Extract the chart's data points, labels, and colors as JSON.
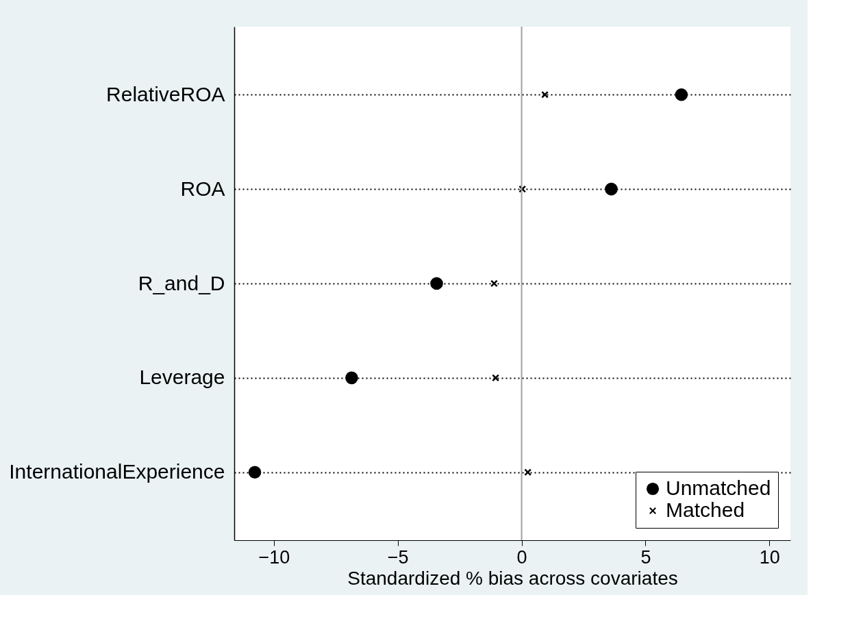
{
  "chart_data": {
    "type": "scatter",
    "orientation": "horizontal",
    "xlabel": "Standardized % bias across covariates",
    "categories": [
      "RelativeROA",
      "ROA",
      "R_and_D",
      "Leverage",
      "InternationalExperience"
    ],
    "series": [
      {
        "name": "Unmatched",
        "color": "#000000",
        "marker": "circle",
        "values": [
          6.45,
          3.62,
          -3.43,
          -6.86,
          -10.77
        ]
      },
      {
        "name": "Matched",
        "color": "#000000",
        "marker": "cross",
        "values": [
          0.94,
          0.03,
          -1.11,
          -1.05,
          0.25
        ]
      }
    ],
    "xlim": [
      -11.6,
      10.85
    ],
    "xticks": [
      -10,
      -5,
      0,
      5,
      10
    ],
    "grid": "y",
    "legend": "bottom right",
    "ref_lines": [
      {
        "axis": "x",
        "value": 0,
        "color": "#a0a0a0"
      }
    ]
  }
}
